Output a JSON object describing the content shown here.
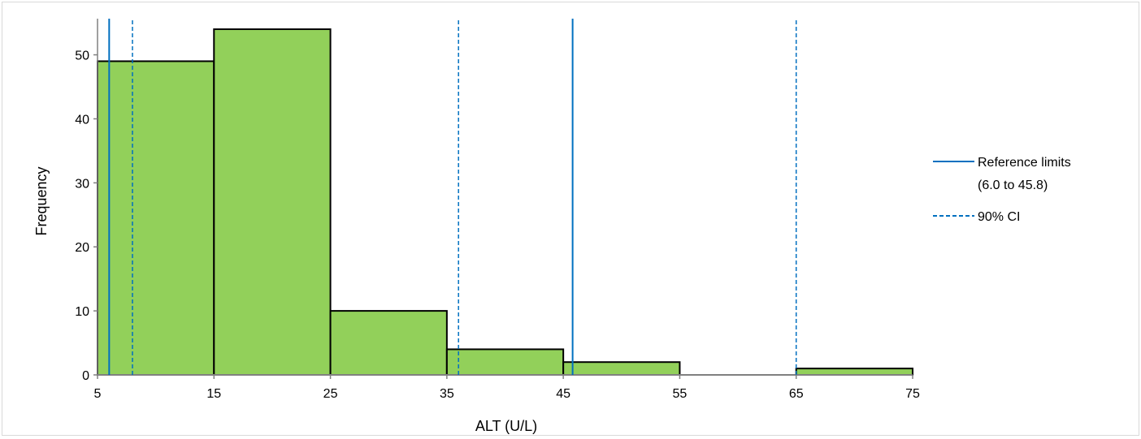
{
  "chart_data": {
    "type": "bar",
    "subtype": "histogram",
    "xlabel": "ALT (U/L)",
    "ylabel": "Frequency",
    "xlim": [
      5,
      75
    ],
    "ylim": [
      0,
      55
    ],
    "xticks": [
      5,
      15,
      25,
      35,
      45,
      55,
      65,
      75
    ],
    "yticks": [
      0,
      10,
      20,
      30,
      40,
      50
    ],
    "grid": false,
    "legend_position": "right",
    "bins": [
      {
        "start": 5,
        "end": 15,
        "value": 49
      },
      {
        "start": 15,
        "end": 25,
        "value": 54
      },
      {
        "start": 25,
        "end": 35,
        "value": 10
      },
      {
        "start": 35,
        "end": 45,
        "value": 4
      },
      {
        "start": 45,
        "end": 55,
        "value": 2
      },
      {
        "start": 55,
        "end": 65,
        "value": 0
      },
      {
        "start": 65,
        "end": 75,
        "value": 1
      }
    ],
    "reference_limits": {
      "label_line1": "Reference limits",
      "label_line2": "(6.0 to 45.8)",
      "values": [
        6.0,
        45.8
      ],
      "style": "solid"
    },
    "ci_lines": {
      "label": "90% CI",
      "values": [
        8.0,
        36.0,
        65.0
      ],
      "style": "dashed"
    },
    "colors": {
      "bar_fill": "#92d05a",
      "bar_stroke": "#000000",
      "reference_line": "#0070c0",
      "axis": "#808080"
    }
  }
}
